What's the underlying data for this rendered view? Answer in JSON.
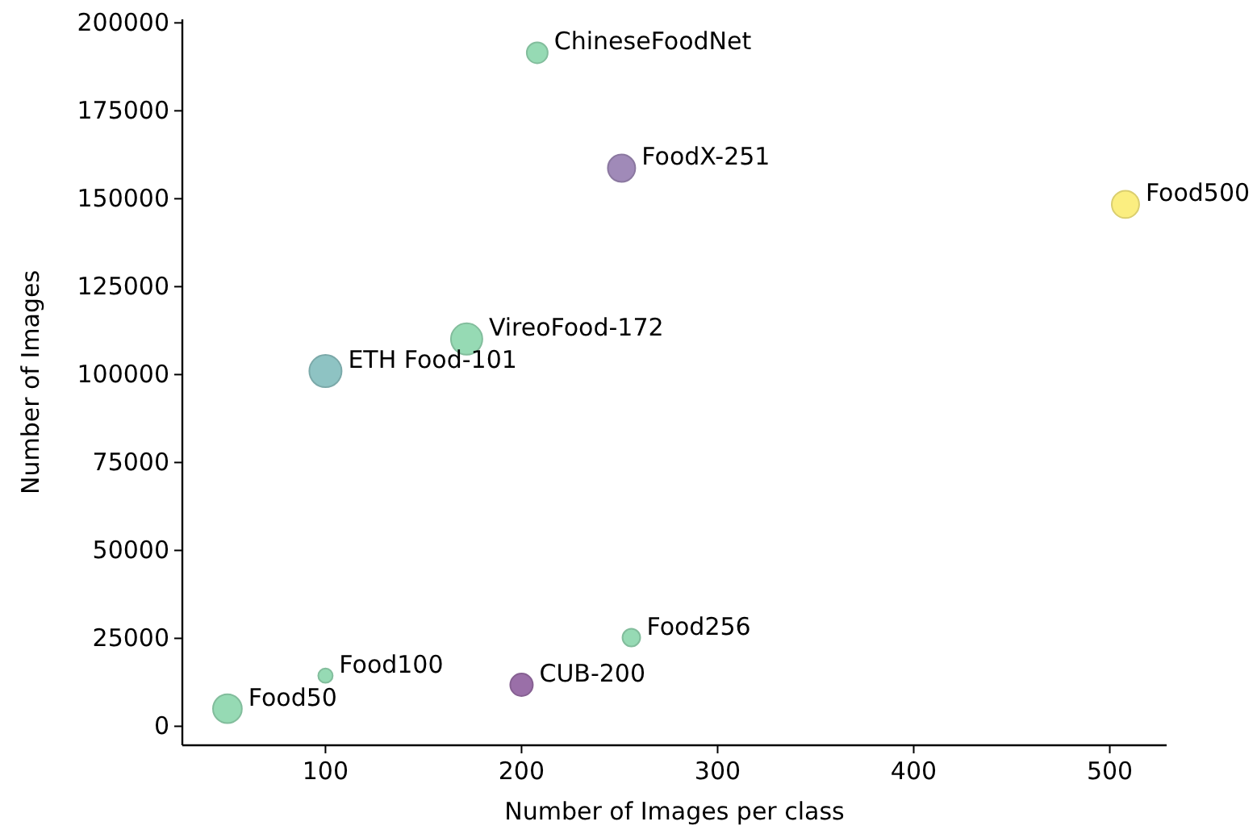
{
  "chart_data": {
    "type": "bubble",
    "xlabel": "Number of Images per class",
    "ylabel": "Number of Images",
    "x": [
      208,
      251,
      508,
      172,
      100,
      50,
      100,
      200,
      256
    ],
    "values": [
      191500,
      158700,
      148400,
      110100,
      101000,
      5000,
      14400,
      11800,
      25200
    ],
    "sizes": [
      0.42,
      0.72,
      0.72,
      0.95,
      1,
      0.8,
      0.2,
      0.49,
      0.3
    ],
    "colors": [
      "#96dab4",
      "#a08ab8",
      "#fbee80",
      "#96dab4",
      "#8ec3c3",
      "#96dab4",
      "#96dab4",
      "#9a6fa8",
      "#96dab4"
    ],
    "xlim": [
      27,
      529
    ],
    "xticks": [
      100,
      200,
      300,
      400,
      500
    ],
    "ylim": [
      -5400,
      201000
    ],
    "yticks": [
      0,
      25000,
      50000,
      75000,
      100000,
      125000,
      150000,
      175000,
      200000
    ],
    "annotations": [
      {
        "text": "ChineseFoodNet",
        "x": 208,
        "y": 191500
      },
      {
        "text": "FoodX-251",
        "x": 251,
        "y": 158700
      },
      {
        "text": "Food500",
        "x": 508,
        "y": 148400
      },
      {
        "text": "VireoFood-172",
        "x": 172,
        "y": 110100
      },
      {
        "text": "ETH Food-101",
        "x": 100,
        "y": 101000
      },
      {
        "text": "Food50",
        "x": 50,
        "y": 5000
      },
      {
        "text": "Food100",
        "x": 100,
        "y": 14400
      },
      {
        "text": "CUB-200",
        "x": 200,
        "y": 11800
      },
      {
        "text": "Food256",
        "x": 256,
        "y": 25200
      }
    ]
  }
}
